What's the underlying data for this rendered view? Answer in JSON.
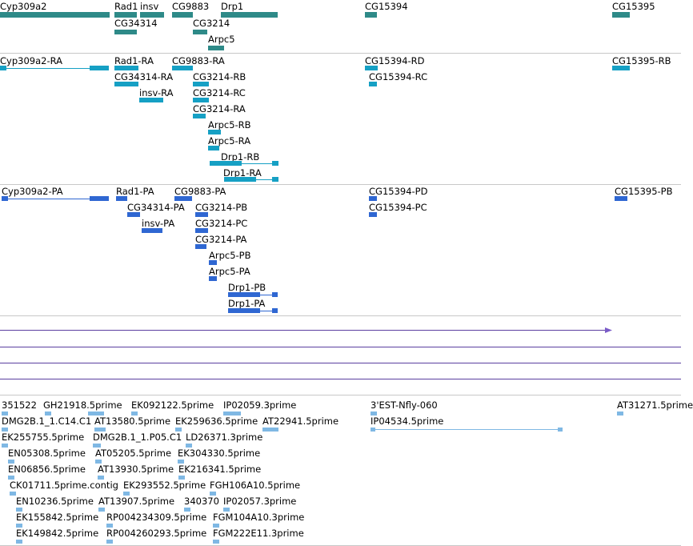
{
  "track_gene": {
    "labels": [
      "Cyp309a2",
      "Rad1",
      "insv",
      "CG34314",
      "CG9883",
      "CG3214",
      "Drp1",
      "Arpc5",
      "CG15394",
      "CG15395"
    ]
  },
  "track_transcript": {
    "labels": [
      "Cyp309a2-RA",
      "Rad1-RA",
      "CG9883-RA",
      "CG34314-RA",
      "insv-RA",
      "CG3214-RB",
      "CG3214-RC",
      "CG3214-RA",
      "Arpc5-RB",
      "Arpc5-RA",
      "Drp1-RB",
      "Drp1-RA",
      "CG15394-RD",
      "CG15394-RC",
      "CG15395-RB"
    ]
  },
  "track_protein": {
    "labels": [
      "Cyp309a2-PA",
      "Rad1-PA",
      "CG9883-PA",
      "CG34314-PA",
      "insv-PA",
      "CG3214-PB",
      "CG3214-PC",
      "CG3214-PA",
      "Arpc5-PB",
      "Arpc5-PA",
      "Drp1-PB",
      "Drp1-PA",
      "CG15394-PD",
      "CG15394-PC",
      "CG15395-PB"
    ]
  },
  "track_est": {
    "labels": [
      "351522",
      "GH21918.5prime",
      "EK092122.5prime",
      "IP02059.3prime",
      "3'EST-Nfly-060",
      "AT31271.5prime",
      "DMG2B.1_1.C14.C1",
      "AT13580.5prime",
      "EK259636.5prime",
      "AT22941.5prime",
      "IP04534.5prime",
      "EK255755.5prime",
      "DMG2B.1_1.P05.C1",
      "LD26371.3prime",
      "EN05308.5prime",
      "AT05205.5prime",
      "EK304330.5prime",
      "EN06856.5prime",
      "AT13930.5prime",
      "EK216341.5prime",
      "CK01711.5prime.contig",
      "EK293552.5prime",
      "FGH106A10.5prime",
      "EN10236.5prime",
      "AT13907.5prime",
      "340370",
      "IP02057.3prime",
      "EK155842.5prime",
      "RP004234309.5prime",
      "FGM104A10.3prime",
      "EK149842.5prime",
      "RP004260293.5prime",
      "FGM222E11.3prime"
    ]
  },
  "colors": {
    "gene": "#2e8a88",
    "transcript": "#16a0c4",
    "protein": "#2f67d2",
    "est": "#7fb8e4",
    "line": "#5b3fa0"
  }
}
